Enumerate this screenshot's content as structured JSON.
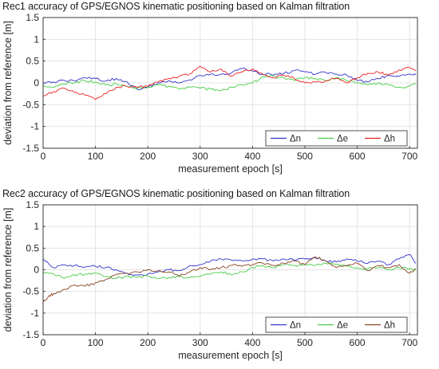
{
  "chart_data": [
    {
      "type": "line",
      "title": "Rec1 accuracy of GPS/EGNOS kinematic positioning based on Kalman filtration",
      "xlabel": "measurement epoch [s]",
      "ylabel": "deviation from reference [m]",
      "xlim": [
        0,
        715
      ],
      "ylim": [
        -1.5,
        1.5
      ],
      "xticks": [
        "0",
        "100",
        "200",
        "300",
        "400",
        "500",
        "600",
        "700"
      ],
      "yticks": [
        "-1.5",
        "-1",
        "-0.5",
        "0",
        "0.5",
        "1",
        "1.5"
      ],
      "grid": true,
      "legend": "bottom-right, horizontal",
      "series": [
        {
          "name": "Δn",
          "color": "#3333cc",
          "x": [
            0,
            20,
            40,
            60,
            80,
            100,
            120,
            140,
            160,
            180,
            200,
            220,
            240,
            260,
            280,
            300,
            320,
            340,
            360,
            380,
            400,
            420,
            440,
            460,
            480,
            500,
            520,
            540,
            560,
            580,
            600,
            620,
            640,
            660,
            680,
            700,
            712
          ],
          "y": [
            0.0,
            0.02,
            0.06,
            0.05,
            0.12,
            0.1,
            0.04,
            0.1,
            0.03,
            -0.15,
            -0.1,
            0.0,
            0.05,
            0.0,
            0.07,
            0.17,
            0.2,
            0.2,
            0.23,
            0.33,
            0.27,
            0.2,
            0.18,
            0.22,
            0.28,
            0.25,
            0.2,
            0.24,
            0.2,
            0.18,
            0.05,
            0.02,
            0.1,
            0.17,
            0.15,
            0.2,
            0.18
          ]
        },
        {
          "name": "Δe",
          "color": "#44cc44",
          "x": [
            0,
            20,
            40,
            60,
            80,
            100,
            120,
            140,
            160,
            180,
            200,
            220,
            240,
            260,
            280,
            300,
            320,
            340,
            360,
            380,
            400,
            420,
            440,
            460,
            480,
            500,
            520,
            540,
            560,
            580,
            600,
            620,
            640,
            660,
            680,
            700,
            712
          ],
          "y": [
            -0.05,
            -0.1,
            -0.02,
            0.0,
            0.05,
            0.02,
            -0.05,
            -0.02,
            -0.08,
            -0.12,
            -0.1,
            -0.05,
            -0.08,
            -0.15,
            -0.1,
            -0.12,
            -0.15,
            -0.18,
            -0.1,
            -0.05,
            0.0,
            0.15,
            0.15,
            0.12,
            0.05,
            0.12,
            0.1,
            0.05,
            0.12,
            0.05,
            0.0,
            -0.05,
            0.0,
            -0.05,
            -0.1,
            -0.07,
            -0.02
          ]
        },
        {
          "name": "Δh",
          "color": "#ee2222",
          "x": [
            0,
            20,
            40,
            60,
            80,
            100,
            120,
            140,
            160,
            180,
            200,
            220,
            240,
            260,
            280,
            300,
            320,
            340,
            360,
            380,
            400,
            420,
            440,
            460,
            480,
            500,
            520,
            540,
            560,
            580,
            600,
            620,
            640,
            660,
            680,
            700,
            712
          ],
          "y": [
            -0.3,
            -0.2,
            -0.12,
            -0.22,
            -0.28,
            -0.38,
            -0.25,
            -0.1,
            -0.08,
            -0.1,
            -0.08,
            0.02,
            0.1,
            0.15,
            0.2,
            0.38,
            0.25,
            0.32,
            0.15,
            0.25,
            0.32,
            0.2,
            0.12,
            0.18,
            0.1,
            0.0,
            0.02,
            0.05,
            0.1,
            0.0,
            0.12,
            0.22,
            0.25,
            0.18,
            0.3,
            0.35,
            0.28
          ]
        }
      ]
    },
    {
      "type": "line",
      "title": "Rec2 accuracy of GPS/EGNOS kinematic positioning based on Kalman filtration",
      "xlabel": "measurement epoch [s]",
      "ylabel": "deviation from reference [m]",
      "xlim": [
        0,
        715
      ],
      "ylim": [
        -1.5,
        1.5
      ],
      "xticks": [
        "0",
        "100",
        "200",
        "300",
        "400",
        "500",
        "600",
        "700"
      ],
      "yticks": [
        "-1.5",
        "-1",
        "-0.5",
        "0",
        "0.5",
        "1",
        "1.5"
      ],
      "grid": true,
      "legend": "bottom-right, horizontal",
      "series": [
        {
          "name": "Δn",
          "color": "#3333cc",
          "x": [
            0,
            20,
            40,
            60,
            80,
            100,
            120,
            140,
            160,
            180,
            200,
            220,
            240,
            260,
            280,
            300,
            320,
            340,
            360,
            380,
            400,
            420,
            440,
            460,
            480,
            500,
            520,
            540,
            560,
            580,
            600,
            620,
            640,
            660,
            680,
            700,
            712
          ],
          "y": [
            0.25,
            0.05,
            0.12,
            0.1,
            0.06,
            0.08,
            0.05,
            0.0,
            -0.08,
            -0.12,
            -0.1,
            -0.05,
            0.0,
            -0.02,
            0.1,
            0.12,
            0.2,
            0.25,
            0.22,
            0.2,
            0.25,
            0.25,
            0.2,
            0.25,
            0.22,
            0.25,
            0.28,
            0.2,
            0.18,
            0.25,
            0.2,
            0.15,
            0.2,
            0.12,
            0.25,
            0.35,
            0.15
          ]
        },
        {
          "name": "Δe",
          "color": "#44cc44",
          "x": [
            0,
            20,
            40,
            60,
            80,
            100,
            120,
            140,
            160,
            180,
            200,
            220,
            240,
            260,
            280,
            300,
            320,
            340,
            360,
            380,
            400,
            420,
            440,
            460,
            480,
            500,
            520,
            540,
            560,
            580,
            600,
            620,
            640,
            660,
            680,
            700,
            712
          ],
          "y": [
            -0.05,
            -0.1,
            -0.2,
            -0.12,
            -0.1,
            -0.08,
            -0.15,
            -0.2,
            -0.15,
            -0.18,
            -0.15,
            -0.2,
            -0.18,
            -0.15,
            -0.18,
            -0.15,
            -0.1,
            -0.05,
            -0.12,
            -0.05,
            0.05,
            0.1,
            0.05,
            0.12,
            0.1,
            0.12,
            0.1,
            0.15,
            0.12,
            0.08,
            0.05,
            0.02,
            0.05,
            0.0,
            0.05,
            0.02,
            0.0
          ]
        },
        {
          "name": "Δh",
          "color": "#884422",
          "x": [
            0,
            10,
            20,
            40,
            60,
            80,
            100,
            120,
            140,
            160,
            180,
            200,
            220,
            240,
            260,
            280,
            300,
            320,
            340,
            360,
            380,
            400,
            420,
            440,
            460,
            480,
            500,
            520,
            540,
            560,
            580,
            600,
            620,
            640,
            660,
            680,
            700,
            712
          ],
          "y": [
            -0.75,
            -0.62,
            -0.55,
            -0.45,
            -0.35,
            -0.38,
            -0.3,
            -0.22,
            -0.1,
            -0.08,
            -0.05,
            0.0,
            -0.02,
            -0.05,
            -0.15,
            -0.05,
            0.05,
            0.0,
            0.05,
            0.1,
            0.08,
            0.12,
            0.15,
            0.1,
            0.15,
            0.2,
            0.12,
            0.3,
            0.2,
            0.05,
            0.1,
            0.15,
            -0.02,
            0.1,
            0.05,
            0.12,
            -0.08,
            0.02
          ]
        }
      ]
    }
  ]
}
